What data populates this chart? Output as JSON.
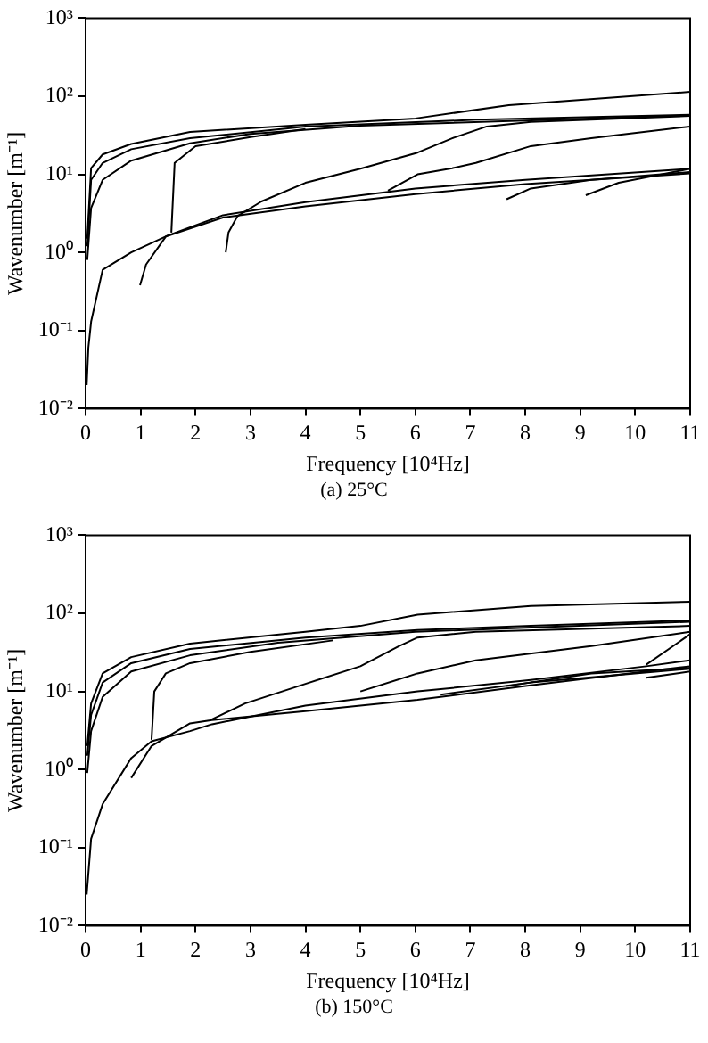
{
  "chart_data": [
    {
      "type": "line",
      "xlabel": "Frequency [10⁴Hz]",
      "ylabel": "Wavenumber [m⁻¹]",
      "annotations": [
        "(a) 25°C"
      ],
      "log": "y",
      "grid": false,
      "legend": false,
      "marker": "none",
      "xlim": [
        0,
        11
      ],
      "ylim": [
        0.01,
        1000
      ],
      "xticks": [
        0,
        1,
        2,
        3,
        4,
        5,
        6,
        7,
        8,
        9,
        10,
        11
      ],
      "yticks": [
        {
          "value": 0.01,
          "label": "10⁻²"
        },
        {
          "value": 0.1,
          "label": "10⁻¹"
        },
        {
          "value": 1,
          "label": "10⁰"
        },
        {
          "value": 10,
          "label": "10¹"
        },
        {
          "value": 100,
          "label": "10²"
        },
        {
          "value": 1000,
          "label": "10³"
        }
      ],
      "series": [
        {
          "color": "#000000",
          "x": [
            0.03,
            0.1,
            0.31,
            0.83,
            1.9,
            4,
            6,
            7.7,
            11
          ],
          "values": [
            1.5,
            12,
            18,
            24.5,
            35,
            43,
            52,
            77,
            114
          ]
        },
        {
          "color": "#000000",
          "x": [
            0.03,
            0.1,
            0.31,
            0.83,
            1.9,
            4,
            7.1,
            11
          ],
          "values": [
            1.2,
            8.5,
            14,
            21,
            29,
            41,
            50,
            58
          ]
        },
        {
          "color": "#000000",
          "x": [
            0.03,
            0.1,
            0.31,
            0.83,
            1.9,
            3,
            5,
            11
          ],
          "values": [
            0.8,
            3.7,
            8.5,
            15,
            25,
            33,
            42,
            57
          ]
        },
        {
          "color": "#000000",
          "x": [
            0.02,
            0.05,
            0.1,
            0.31,
            0.83,
            1.5,
            2.5,
            4,
            6,
            8,
            11
          ],
          "values": [
            0.02,
            0.06,
            0.13,
            0.6,
            1.0,
            1.65,
            3.0,
            4.4,
            6.6,
            8.5,
            11.8
          ]
        },
        {
          "color": "#000000",
          "x": [
            1.56,
            1.62,
            2,
            3,
            4
          ],
          "values": [
            1.8,
            14,
            23,
            30,
            38
          ]
        },
        {
          "color": "#000000",
          "x": [
            0.99,
            1.1,
            1.46,
            2.5,
            4,
            6,
            8,
            11
          ],
          "values": [
            0.38,
            0.7,
            1.6,
            2.8,
            3.9,
            5.6,
            7.5,
            10.3
          ]
        },
        {
          "color": "#000000",
          "x": [
            2.55,
            2.6,
            2.76,
            3.2,
            4,
            5,
            6.04,
            6.67,
            7.3,
            8.1,
            11
          ],
          "values": [
            1.0,
            1.8,
            2.9,
            4.5,
            7.8,
            11.8,
            19,
            29,
            41,
            47,
            56
          ]
        },
        {
          "color": "#000000",
          "x": [
            5.5,
            6.04,
            6.67,
            7.1,
            8.1,
            9.2,
            11
          ],
          "values": [
            6.2,
            10,
            12,
            14,
            23,
            29,
            41
          ]
        },
        {
          "color": "#000000",
          "x": [
            7.66,
            8.1,
            9.2,
            11
          ],
          "values": [
            4.8,
            6.6,
            8.5,
            10.7
          ]
        },
        {
          "color": "#000000",
          "x": [
            9.1,
            9.7,
            11
          ],
          "values": [
            5.4,
            7.8,
            11.8
          ]
        }
      ]
    },
    {
      "type": "line",
      "xlabel": "Frequency [10⁴Hz]",
      "ylabel": "Wavenumber [m⁻¹]",
      "annotations": [
        "(b) 150°C"
      ],
      "log": "y",
      "grid": false,
      "legend": false,
      "marker": "none",
      "xlim": [
        0,
        11
      ],
      "ylim": [
        0.01,
        1000
      ],
      "xticks": [
        0,
        1,
        2,
        3,
        4,
        5,
        6,
        7,
        8,
        9,
        10,
        11
      ],
      "yticks": [
        {
          "value": 0.01,
          "label": "10⁻²"
        },
        {
          "value": 0.1,
          "label": "10⁻¹"
        },
        {
          "value": 1,
          "label": "10⁰"
        },
        {
          "value": 10,
          "label": "10¹"
        },
        {
          "value": 100,
          "label": "10²"
        },
        {
          "value": 1000,
          "label": "10³"
        }
      ],
      "series": [
        {
          "color": "#000000",
          "x": [
            0.03,
            0.1,
            0.31,
            0.83,
            1.9,
            4,
            5,
            6.04,
            8.1,
            11
          ],
          "values": [
            2,
            7,
            17,
            27.5,
            41,
            58,
            69,
            96,
            124,
            141
          ]
        },
        {
          "color": "#000000",
          "x": [
            0.03,
            0.1,
            0.31,
            0.83,
            1.9,
            4,
            6.04,
            8.1,
            11
          ],
          "values": [
            1.5,
            5,
            13,
            23,
            35,
            49,
            61,
            69,
            81
          ]
        },
        {
          "color": "#000000",
          "x": [
            0.03,
            0.1,
            0.31,
            0.83,
            1.9,
            3.5,
            6,
            11
          ],
          "values": [
            0.9,
            3.1,
            8.5,
            18,
            29,
            42,
            58,
            78
          ]
        },
        {
          "color": "#000000",
          "x": [
            0.02,
            0.1,
            0.31,
            0.83,
            1.2,
            1.9,
            2.3,
            4,
            6.04,
            8.1,
            10.2,
            11
          ],
          "values": [
            0.025,
            0.13,
            0.36,
            1.4,
            2.3,
            3.1,
            3.8,
            6.6,
            10,
            14,
            21,
            25
          ]
        },
        {
          "color": "#000000",
          "x": [
            1.2,
            1.25,
            1.46,
            1.9,
            3,
            4.5
          ],
          "values": [
            2.4,
            10,
            17,
            23,
            32,
            45
          ]
        },
        {
          "color": "#000000",
          "x": [
            0.83,
            1.2,
            1.9,
            2.3,
            4,
            6.04,
            8.1,
            10.2,
            11
          ],
          "values": [
            0.78,
            2.0,
            3.9,
            4.3,
            5.6,
            7.8,
            12,
            18,
            21
          ]
        },
        {
          "color": "#000000",
          "x": [
            2.3,
            2.9,
            4,
            5,
            5.7,
            6.04,
            7.1,
            11
          ],
          "values": [
            4.4,
            7,
            12.5,
            21,
            38,
            49,
            58,
            69
          ]
        },
        {
          "color": "#000000",
          "x": [
            5,
            6.04,
            7.1,
            9.2,
            11
          ],
          "values": [
            10,
            17,
            25,
            38,
            58
          ]
        },
        {
          "color": "#000000",
          "x": [
            6.46,
            8.1,
            11
          ],
          "values": [
            9.1,
            13,
            19.5
          ]
        },
        {
          "color": "#000000",
          "x": [
            7.66,
            9.2,
            11
          ],
          "values": [
            11.7,
            17,
            20
          ]
        },
        {
          "color": "#000000",
          "x": [
            10.2,
            11
          ],
          "values": [
            22,
            54
          ]
        },
        {
          "color": "#000000",
          "x": [
            10.2,
            11
          ],
          "values": [
            15,
            18
          ]
        }
      ]
    }
  ]
}
